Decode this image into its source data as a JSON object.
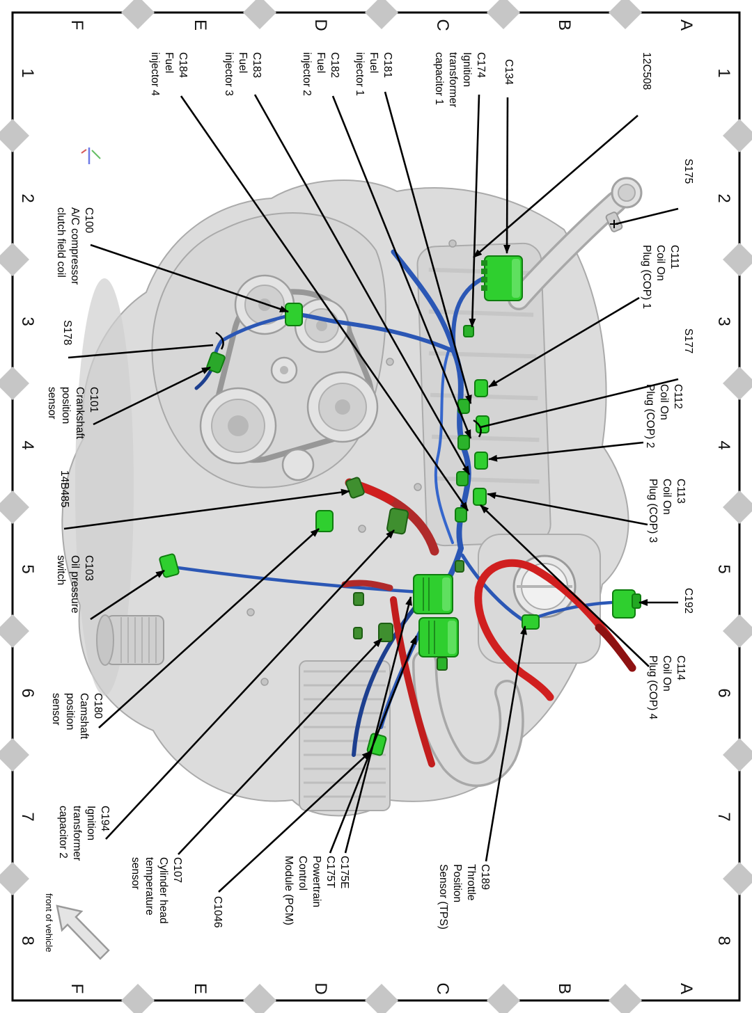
{
  "page": {
    "type": "engine-harness-connector-location-diagram",
    "front_of_vehicle_label": "front of vehicle"
  },
  "grid": {
    "letters": [
      "A",
      "B",
      "C",
      "D",
      "E",
      "F"
    ],
    "numbers": [
      "1",
      "2",
      "3",
      "4",
      "5",
      "6",
      "7",
      "8"
    ]
  },
  "colors": {
    "connector_green": "#2fcf2f",
    "connector_dark_green": "#3f8f2f",
    "harness_blue": "#2b57b5",
    "harness_dark_blue": "#1d3f8f",
    "hose_red": "#d01f1f",
    "hose_dark_red": "#8e1212",
    "engine_gray": "#d9d9d9",
    "grid_marker_gray": "#c6c6c6",
    "leader_line_black": "#000000"
  },
  "callouts": [
    {
      "id": "12c508",
      "lines": [
        "12C508"
      ]
    },
    {
      "id": "c134",
      "lines": [
        "C134"
      ]
    },
    {
      "id": "c174",
      "lines": [
        "C174",
        "Ignition",
        "transformer",
        "capacitor 1"
      ]
    },
    {
      "id": "c181",
      "lines": [
        "C181",
        "Fuel",
        "injector 1"
      ]
    },
    {
      "id": "c182",
      "lines": [
        "C182",
        "Fuel",
        "injector 2"
      ]
    },
    {
      "id": "c183",
      "lines": [
        "C183",
        "Fuel",
        "injector 3"
      ]
    },
    {
      "id": "c184",
      "lines": [
        "C184",
        "Fuel",
        "injector 4"
      ]
    },
    {
      "id": "s175",
      "lines": [
        "S175"
      ]
    },
    {
      "id": "c111",
      "lines": [
        "C111",
        "Coil On",
        "Plug (COP) 1"
      ]
    },
    {
      "id": "s177",
      "lines": [
        "S177"
      ]
    },
    {
      "id": "c112",
      "lines": [
        "C112",
        "Coil On",
        "Plug (COP) 2"
      ]
    },
    {
      "id": "c113",
      "lines": [
        "C113",
        "Coil On",
        "Plug (COP) 3"
      ]
    },
    {
      "id": "c192",
      "lines": [
        "C192"
      ]
    },
    {
      "id": "c114",
      "lines": [
        "C114",
        "Coil On",
        "Plug (COP) 4"
      ]
    },
    {
      "id": "c100",
      "lines": [
        "C100",
        "A/C compressor",
        "clutch field coil"
      ]
    },
    {
      "id": "s178",
      "lines": [
        "S178"
      ]
    },
    {
      "id": "c101",
      "lines": [
        "C101",
        "Crankshaft",
        "position",
        "sensor"
      ]
    },
    {
      "id": "14b485",
      "lines": [
        "14B485"
      ]
    },
    {
      "id": "c103",
      "lines": [
        "C103",
        "Oil pressure",
        "switch"
      ]
    },
    {
      "id": "c180",
      "lines": [
        "C180",
        "Camshaft",
        "position",
        "sensor"
      ]
    },
    {
      "id": "c194",
      "lines": [
        "C194",
        "Ignition",
        "transformer",
        "capacitor 2"
      ]
    },
    {
      "id": "c107",
      "lines": [
        "C107",
        "Cylinder head",
        "temperature",
        "sensor"
      ]
    },
    {
      "id": "c1046",
      "lines": [
        "C1046"
      ]
    },
    {
      "id": "pcm",
      "lines": [
        "C175E",
        "C175T",
        "Powertrain",
        "Control",
        "Module (PCM)"
      ]
    },
    {
      "id": "c189",
      "lines": [
        "C189",
        "Throttle",
        "Position",
        "Sensor (TPS)"
      ]
    },
    {
      "id": "front",
      "lines": [
        "front of vehicle"
      ]
    }
  ]
}
